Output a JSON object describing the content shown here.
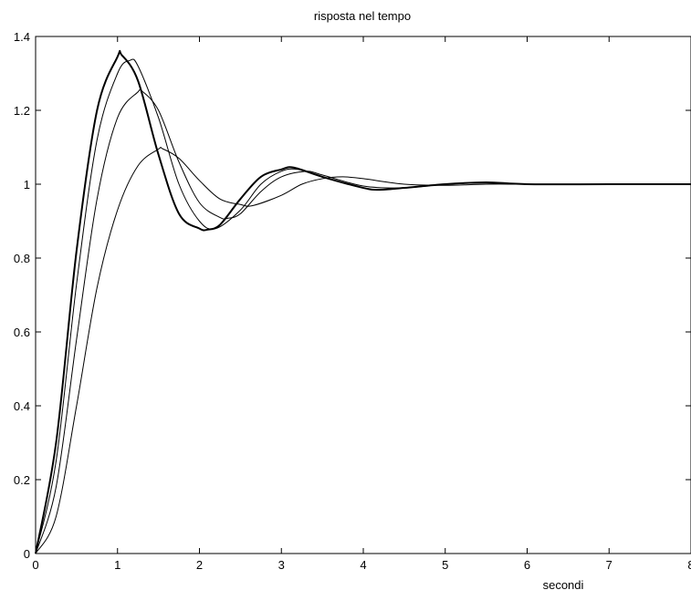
{
  "chart_data": {
    "type": "line",
    "title": "risposta nel tempo",
    "xlabel": "secondi",
    "ylabel": "",
    "xlim": [
      0,
      8
    ],
    "ylim": [
      0,
      1.4
    ],
    "x_ticks": [
      "0",
      "1",
      "2",
      "3",
      "4",
      "5",
      "6",
      "7",
      "8"
    ],
    "y_ticks": [
      "0",
      "0.2",
      "0.4",
      "0.6",
      "0.8",
      "1",
      "1.2",
      "1.4"
    ],
    "grid": false,
    "legend": "none",
    "line_color": "#000000",
    "series": [
      {
        "x": [
          0,
          0.25,
          0.5,
          0.75,
          1.0,
          1.05,
          1.25,
          1.5,
          1.75,
          2.0,
          2.1,
          2.25,
          2.5,
          2.75,
          3.0,
          3.15,
          3.5,
          4.0,
          4.2,
          4.5,
          5.0,
          5.5,
          6.0,
          7.0,
          8.0
        ],
        "values": [
          0,
          0.3,
          0.82,
          1.2,
          1.345,
          1.35,
          1.28,
          1.08,
          0.92,
          0.88,
          0.877,
          0.89,
          0.96,
          1.02,
          1.04,
          1.045,
          1.02,
          0.99,
          0.985,
          0.99,
          1.0,
          1.005,
          1.0,
          1.0,
          1.0
        ]
      },
      {
        "x": [
          0,
          0.25,
          0.5,
          0.75,
          1.0,
          1.15,
          1.25,
          1.5,
          1.75,
          2.0,
          2.2,
          2.5,
          2.75,
          3.0,
          3.2,
          3.5,
          4.0,
          4.25,
          4.5,
          5.0,
          5.5,
          6.0,
          7.0,
          8.0
        ],
        "values": [
          0,
          0.25,
          0.73,
          1.12,
          1.3,
          1.335,
          1.32,
          1.18,
          1.0,
          0.9,
          0.88,
          0.93,
          1.0,
          1.035,
          1.04,
          1.02,
          0.99,
          0.985,
          0.99,
          1.0,
          1.005,
          1.0,
          1.0,
          1.0
        ]
      },
      {
        "x": [
          0,
          0.25,
          0.5,
          0.75,
          1.0,
          1.25,
          1.3,
          1.5,
          1.75,
          2.0,
          2.25,
          2.35,
          2.5,
          2.75,
          3.0,
          3.3,
          3.5,
          4.0,
          4.5,
          5.0,
          5.5,
          6.0,
          7.0,
          8.0
        ],
        "values": [
          0,
          0.18,
          0.58,
          0.96,
          1.18,
          1.25,
          1.252,
          1.2,
          1.06,
          0.95,
          0.91,
          0.908,
          0.92,
          0.98,
          1.02,
          1.035,
          1.025,
          0.995,
          0.99,
          1.0,
          1.003,
          1.0,
          1.0,
          1.0
        ]
      },
      {
        "x": [
          0,
          0.25,
          0.5,
          0.75,
          1.0,
          1.25,
          1.5,
          1.55,
          1.75,
          2.0,
          2.25,
          2.5,
          2.65,
          3.0,
          3.25,
          3.5,
          3.75,
          4.0,
          4.5,
          5.0,
          5.5,
          6.0,
          7.0,
          8.0
        ],
        "values": [
          0,
          0.1,
          0.4,
          0.72,
          0.93,
          1.05,
          1.095,
          1.096,
          1.07,
          1.01,
          0.96,
          0.945,
          0.942,
          0.97,
          1.0,
          1.015,
          1.02,
          1.015,
          1.0,
          0.997,
          1.0,
          1.0,
          1.0,
          1.0
        ]
      }
    ]
  }
}
